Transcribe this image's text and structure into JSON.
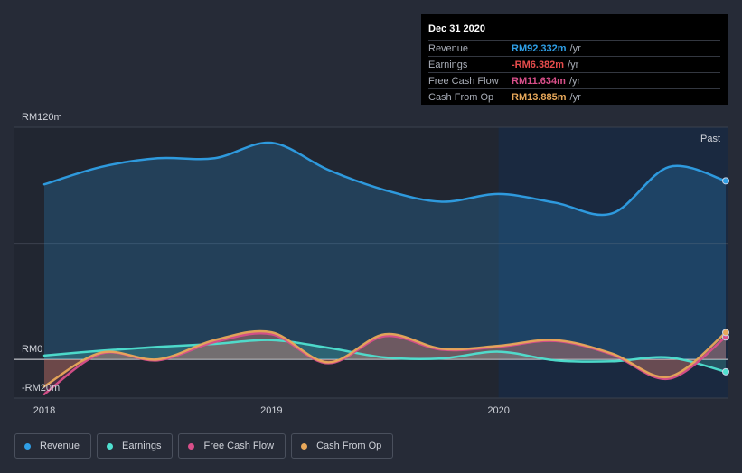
{
  "chart_data": {
    "type": "area",
    "title": "",
    "xlabel": "",
    "ylabel": "",
    "ylim": [
      -20,
      120
    ],
    "y_ticks": [
      {
        "value": 120,
        "label": "RM120m"
      },
      {
        "value": 0,
        "label": "RM0"
      },
      {
        "value": -20,
        "label": "-RM20m"
      }
    ],
    "x_ticks": [
      {
        "value": 2018.0,
        "label": "2018"
      },
      {
        "value": 2019.0,
        "label": "2019"
      },
      {
        "value": 2020.0,
        "label": "2020"
      }
    ],
    "past_label": "Past",
    "series": [
      {
        "name": "Revenue",
        "color": "#2f9fe6",
        "x": [
          2018.0,
          2018.25,
          2018.5,
          2018.75,
          2019.0,
          2019.25,
          2019.5,
          2019.75,
          2020.0,
          2020.25,
          2020.5,
          2020.75,
          2021.0
        ],
        "values": [
          90.5,
          99.5,
          104,
          104,
          112,
          98,
          87.5,
          81.5,
          85.5,
          81,
          75.5,
          99.5,
          92.3
        ]
      },
      {
        "name": "Earnings",
        "color": "#4fe0d0",
        "x": [
          2018.0,
          2018.25,
          2018.5,
          2018.75,
          2019.0,
          2019.25,
          2019.5,
          2019.75,
          2020.0,
          2020.25,
          2020.5,
          2020.75,
          2021.0
        ],
        "values": [
          2,
          4.5,
          6.5,
          8,
          10,
          6,
          1,
          0.5,
          4,
          -0.5,
          -1,
          1,
          -6.4
        ]
      },
      {
        "name": "Free Cash Flow",
        "color": "#d94f8a",
        "x": [
          2018.0,
          2018.25,
          2018.5,
          2018.75,
          2019.0,
          2019.25,
          2019.5,
          2019.75,
          2020.0,
          2020.25,
          2020.5,
          2020.75,
          2021.0
        ],
        "values": [
          -18,
          3,
          -0.5,
          9,
          13,
          -2,
          12,
          5,
          6.5,
          9.5,
          2.5,
          -10,
          11.6
        ]
      },
      {
        "name": "Cash From Op",
        "color": "#e8a85a",
        "x": [
          2018.0,
          2018.25,
          2018.5,
          2018.75,
          2019.0,
          2019.25,
          2019.5,
          2019.75,
          2020.0,
          2020.25,
          2020.5,
          2020.75,
          2021.0
        ],
        "values": [
          -14,
          3.5,
          0,
          10,
          14,
          -1.5,
          13,
          5.5,
          7,
          10,
          3,
          -9,
          13.9
        ]
      }
    ],
    "tooltip": {
      "date": "Dec 31 2020",
      "rows": [
        {
          "label": "Revenue",
          "value": "RM92.332m",
          "unit": "/yr",
          "color": "#2f9fe6"
        },
        {
          "label": "Earnings",
          "value": "-RM6.382m",
          "unit": "/yr",
          "color": "#e74c4c"
        },
        {
          "label": "Free Cash Flow",
          "value": "RM11.634m",
          "unit": "/yr",
          "color": "#d94f8a"
        },
        {
          "label": "Cash From Op",
          "value": "RM13.885m",
          "unit": "/yr",
          "color": "#e8a85a"
        }
      ]
    },
    "legend": [
      {
        "label": "Revenue",
        "color": "#2f9fe6"
      },
      {
        "label": "Earnings",
        "color": "#4fe0d0"
      },
      {
        "label": "Free Cash Flow",
        "color": "#d94f8a"
      },
      {
        "label": "Cash From Op",
        "color": "#e8a85a"
      }
    ]
  }
}
